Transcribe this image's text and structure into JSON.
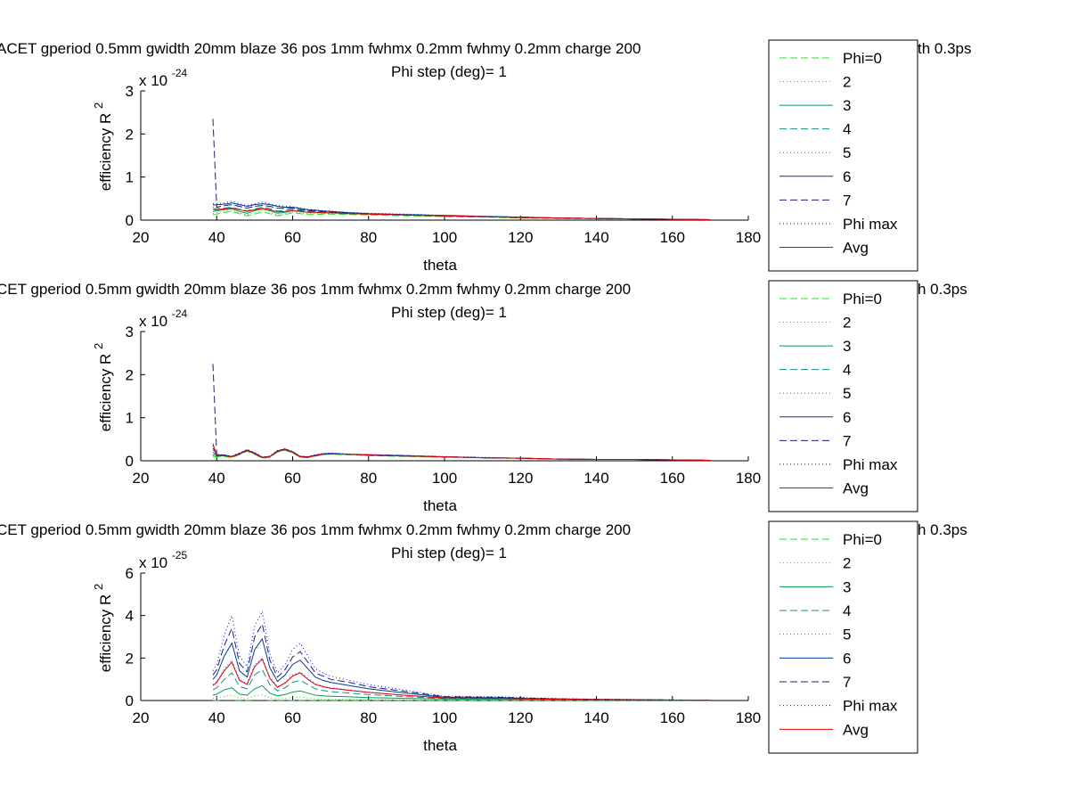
{
  "legend_labels": [
    "Phi=0",
    "2",
    "3",
    "4",
    "5",
    "6",
    "7",
    "Phi max",
    "Avg"
  ],
  "series_styles": [
    {
      "color": "#1ee61e",
      "dash": "8,4"
    },
    {
      "color": "#18d418",
      "dash": "1,3"
    },
    {
      "color": "#00a050",
      "dash": ""
    },
    {
      "color": "#148c8c",
      "dash": "8,4"
    },
    {
      "color": "#1e78c8",
      "dash": "1,3"
    },
    {
      "color": "#003c8c",
      "dash": ""
    },
    {
      "color": "#1e1e78",
      "dash": "8,4"
    },
    {
      "color": "#0000ff",
      "dash": "1,3"
    },
    {
      "color": "#e60000",
      "dash": ""
    }
  ],
  "chart_data": [
    {
      "type": "line",
      "title": "ACET gperiod 0.5mm gwidth 20mm blaze 36 pos 1mm fwhmx 0.2mm fwhmy 0.2mm charge 200",
      "title_tail": "th 0.3ps",
      "subtitle": "Phi step (deg)= 1",
      "xlabel": "theta",
      "ylabel": "efficiency R",
      "ylabel_sup": "2",
      "exponent_prefix": "x 10",
      "exponent_value": "-24",
      "xlim": [
        20,
        180
      ],
      "ylim": [
        0,
        3
      ],
      "xticks": [
        "20",
        "40",
        "60",
        "80",
        "100",
        "120",
        "140",
        "160",
        "180"
      ],
      "yticks": [
        "0",
        "1",
        "2",
        "3"
      ],
      "x": [
        39,
        40,
        42,
        44,
        46,
        48,
        50,
        52,
        54,
        56,
        58,
        60,
        62,
        64,
        66,
        68,
        70,
        75,
        80,
        90,
        100,
        110,
        120,
        130,
        140,
        150,
        160,
        170
      ],
      "series": [
        {
          "values": [
            0.12,
            0.14,
            0.18,
            0.2,
            0.15,
            0.1,
            0.14,
            0.19,
            0.15,
            0.1,
            0.13,
            0.17,
            0.15,
            0.13,
            0.13,
            0.14,
            0.14,
            0.13,
            0.12,
            0.1,
            0.08,
            0.07,
            0.05,
            0.04,
            0.03,
            0.03,
            0.02,
            0.01
          ]
        },
        {
          "values": [
            0.15,
            0.17,
            0.2,
            0.22,
            0.17,
            0.12,
            0.17,
            0.22,
            0.18,
            0.12,
            0.15,
            0.19,
            0.17,
            0.15,
            0.15,
            0.15,
            0.16,
            0.14,
            0.13,
            0.11,
            0.09,
            0.08,
            0.06,
            0.05,
            0.04,
            0.03,
            0.02,
            0.01
          ]
        },
        {
          "values": [
            0.2,
            0.22,
            0.24,
            0.26,
            0.2,
            0.16,
            0.22,
            0.26,
            0.22,
            0.16,
            0.18,
            0.22,
            0.2,
            0.18,
            0.18,
            0.17,
            0.17,
            0.15,
            0.14,
            0.12,
            0.1,
            0.08,
            0.06,
            0.05,
            0.04,
            0.03,
            0.02,
            0.01
          ]
        },
        {
          "values": [
            0.25,
            0.27,
            0.28,
            0.3,
            0.25,
            0.22,
            0.26,
            0.3,
            0.27,
            0.21,
            0.23,
            0.25,
            0.22,
            0.2,
            0.2,
            0.19,
            0.18,
            0.16,
            0.15,
            0.12,
            0.1,
            0.08,
            0.07,
            0.05,
            0.04,
            0.03,
            0.02,
            0.01
          ]
        },
        {
          "values": [
            0.3,
            0.32,
            0.33,
            0.35,
            0.3,
            0.28,
            0.32,
            0.35,
            0.32,
            0.28,
            0.28,
            0.28,
            0.25,
            0.22,
            0.22,
            0.2,
            0.19,
            0.17,
            0.15,
            0.13,
            0.1,
            0.09,
            0.07,
            0.05,
            0.04,
            0.03,
            0.02,
            0.01
          ]
        },
        {
          "values": [
            0.35,
            0.36,
            0.37,
            0.4,
            0.36,
            0.32,
            0.36,
            0.38,
            0.36,
            0.32,
            0.3,
            0.3,
            0.27,
            0.24,
            0.23,
            0.21,
            0.2,
            0.17,
            0.15,
            0.13,
            0.11,
            0.09,
            0.07,
            0.05,
            0.04,
            0.03,
            0.02,
            0.01
          ]
        },
        {
          "values": [
            2.35,
            0.3,
            0.34,
            0.36,
            0.32,
            0.28,
            0.32,
            0.34,
            0.32,
            0.28,
            0.27,
            0.27,
            0.24,
            0.22,
            0.21,
            0.2,
            0.19,
            0.16,
            0.15,
            0.12,
            0.1,
            0.08,
            0.07,
            0.05,
            0.04,
            0.03,
            0.02,
            0.01
          ]
        },
        {
          "values": [
            0.38,
            0.38,
            0.4,
            0.44,
            0.38,
            0.34,
            0.38,
            0.42,
            0.38,
            0.34,
            0.32,
            0.31,
            0.28,
            0.25,
            0.24,
            0.22,
            0.21,
            0.18,
            0.16,
            0.14,
            0.11,
            0.09,
            0.07,
            0.05,
            0.04,
            0.03,
            0.02,
            0.01
          ]
        },
        {
          "values": [
            0.25,
            0.24,
            0.26,
            0.28,
            0.24,
            0.2,
            0.24,
            0.27,
            0.24,
            0.19,
            0.2,
            0.22,
            0.2,
            0.18,
            0.18,
            0.17,
            0.17,
            0.15,
            0.14,
            0.12,
            0.1,
            0.08,
            0.06,
            0.05,
            0.04,
            0.03,
            0.02,
            0.01
          ]
        }
      ]
    },
    {
      "type": "line",
      "title": "CET gperiod 0.5mm gwidth 20mm blaze 36 pos 1mm fwhmx 0.2mm fwhmy 0.2mm charge 200",
      "title_tail": "h 0.3ps",
      "subtitle": "Phi step (deg)= 1",
      "xlabel": "theta",
      "ylabel": "efficiency R",
      "ylabel_sup": "2",
      "exponent_prefix": "x 10",
      "exponent_value": "-24",
      "xlim": [
        20,
        180
      ],
      "ylim": [
        0,
        3
      ],
      "xticks": [
        "20",
        "40",
        "60",
        "80",
        "100",
        "120",
        "140",
        "160",
        "180"
      ],
      "yticks": [
        "0",
        "1",
        "2",
        "3"
      ],
      "x": [
        39,
        40,
        42,
        44,
        46,
        48,
        50,
        52,
        54,
        56,
        58,
        60,
        62,
        64,
        66,
        68,
        70,
        75,
        80,
        90,
        100,
        110,
        120,
        130,
        140,
        150,
        160,
        170
      ],
      "series": [
        {
          "values": [
            0.1,
            0.09,
            0.1,
            0.07,
            0.14,
            0.22,
            0.15,
            0.06,
            0.08,
            0.2,
            0.24,
            0.18,
            0.08,
            0.07,
            0.11,
            0.14,
            0.15,
            0.14,
            0.12,
            0.1,
            0.08,
            0.07,
            0.05,
            0.04,
            0.03,
            0.03,
            0.02,
            0.01
          ]
        },
        {
          "values": [
            0.12,
            0.1,
            0.11,
            0.08,
            0.15,
            0.23,
            0.16,
            0.07,
            0.09,
            0.21,
            0.25,
            0.19,
            0.09,
            0.08,
            0.12,
            0.15,
            0.16,
            0.14,
            0.13,
            0.11,
            0.09,
            0.07,
            0.06,
            0.04,
            0.03,
            0.03,
            0.02,
            0.01
          ]
        },
        {
          "values": [
            0.14,
            0.11,
            0.12,
            0.09,
            0.15,
            0.24,
            0.16,
            0.07,
            0.09,
            0.21,
            0.26,
            0.19,
            0.09,
            0.08,
            0.12,
            0.15,
            0.16,
            0.15,
            0.13,
            0.11,
            0.09,
            0.07,
            0.06,
            0.04,
            0.03,
            0.03,
            0.02,
            0.01
          ]
        },
        {
          "values": [
            0.2,
            0.12,
            0.12,
            0.09,
            0.16,
            0.24,
            0.17,
            0.07,
            0.1,
            0.22,
            0.26,
            0.2,
            0.09,
            0.08,
            0.12,
            0.15,
            0.16,
            0.15,
            0.13,
            0.11,
            0.09,
            0.07,
            0.06,
            0.04,
            0.03,
            0.03,
            0.02,
            0.01
          ]
        },
        {
          "values": [
            0.25,
            0.13,
            0.13,
            0.1,
            0.16,
            0.25,
            0.17,
            0.08,
            0.1,
            0.22,
            0.27,
            0.2,
            0.1,
            0.09,
            0.13,
            0.16,
            0.17,
            0.15,
            0.13,
            0.11,
            0.09,
            0.07,
            0.06,
            0.04,
            0.03,
            0.03,
            0.02,
            0.01
          ]
        },
        {
          "values": [
            0.3,
            0.14,
            0.13,
            0.1,
            0.17,
            0.25,
            0.18,
            0.08,
            0.1,
            0.23,
            0.27,
            0.21,
            0.1,
            0.09,
            0.13,
            0.16,
            0.17,
            0.15,
            0.14,
            0.12,
            0.09,
            0.07,
            0.06,
            0.04,
            0.03,
            0.03,
            0.02,
            0.01
          ]
        },
        {
          "values": [
            2.25,
            0.14,
            0.13,
            0.1,
            0.17,
            0.25,
            0.18,
            0.08,
            0.1,
            0.23,
            0.27,
            0.21,
            0.1,
            0.09,
            0.13,
            0.16,
            0.17,
            0.15,
            0.14,
            0.12,
            0.09,
            0.07,
            0.06,
            0.04,
            0.03,
            0.03,
            0.02,
            0.01
          ]
        },
        {
          "values": [
            0.35,
            0.15,
            0.14,
            0.11,
            0.18,
            0.26,
            0.19,
            0.09,
            0.11,
            0.24,
            0.28,
            0.22,
            0.11,
            0.1,
            0.14,
            0.17,
            0.18,
            0.16,
            0.14,
            0.12,
            0.1,
            0.08,
            0.06,
            0.04,
            0.03,
            0.03,
            0.02,
            0.01
          ]
        },
        {
          "values": [
            0.4,
            0.12,
            0.12,
            0.09,
            0.16,
            0.24,
            0.17,
            0.07,
            0.1,
            0.22,
            0.26,
            0.2,
            0.09,
            0.08,
            0.12,
            0.15,
            0.16,
            0.15,
            0.13,
            0.11,
            0.09,
            0.07,
            0.06,
            0.04,
            0.03,
            0.03,
            0.02,
            0.01
          ]
        }
      ]
    },
    {
      "type": "line",
      "title": "CET gperiod 0.5mm gwidth 20mm blaze 36 pos 1mm fwhmx 0.2mm fwhmy 0.2mm charge 200",
      "title_tail": "h 0.3ps",
      "subtitle": "Phi step (deg)= 1",
      "xlabel": "theta",
      "ylabel": "efficiency R",
      "ylabel_sup": "2",
      "exponent_prefix": "x 10",
      "exponent_value": "-25",
      "xlim": [
        20,
        180
      ],
      "ylim": [
        0,
        6
      ],
      "xticks": [
        "20",
        "40",
        "60",
        "80",
        "100",
        "120",
        "140",
        "160",
        "180"
      ],
      "yticks": [
        "0",
        "2",
        "4",
        "6"
      ],
      "x": [
        39,
        40,
        42,
        44,
        46,
        48,
        50,
        52,
        54,
        56,
        58,
        60,
        62,
        64,
        66,
        68,
        70,
        75,
        80,
        90,
        100,
        110,
        115,
        120,
        130,
        140,
        150,
        160,
        170
      ],
      "series": [
        {
          "values": [
            0.01,
            0.01,
            0.02,
            0.02,
            0.01,
            0.01,
            0.02,
            0.02,
            0.01,
            0.01,
            0.01,
            0.01,
            0.01,
            0.01,
            0.01,
            0.01,
            0.01,
            0.01,
            0.01,
            0.01,
            0.01,
            0.01,
            0.01,
            0.01,
            0.01,
            0.01,
            0.01,
            0.01,
            0.01
          ]
        },
        {
          "values": [
            0.1,
            0.12,
            0.2,
            0.25,
            0.1,
            0.08,
            0.22,
            0.27,
            0.12,
            0.08,
            0.1,
            0.14,
            0.16,
            0.12,
            0.08,
            0.07,
            0.06,
            0.05,
            0.04,
            0.03,
            0.03,
            0.03,
            0.03,
            0.02,
            0.02,
            0.01,
            0.01,
            0.01,
            0.01
          ]
        },
        {
          "values": [
            0.25,
            0.3,
            0.5,
            0.6,
            0.3,
            0.25,
            0.55,
            0.7,
            0.35,
            0.22,
            0.28,
            0.4,
            0.45,
            0.35,
            0.25,
            0.22,
            0.2,
            0.17,
            0.14,
            0.1,
            0.07,
            0.06,
            0.06,
            0.05,
            0.04,
            0.03,
            0.02,
            0.02,
            0.01
          ]
        },
        {
          "values": [
            0.5,
            0.6,
            1.0,
            1.3,
            0.65,
            0.55,
            1.2,
            1.45,
            0.75,
            0.45,
            0.6,
            0.85,
            0.95,
            0.75,
            0.55,
            0.47,
            0.42,
            0.35,
            0.28,
            0.18,
            0.1,
            0.09,
            0.08,
            0.07,
            0.05,
            0.04,
            0.03,
            0.02,
            0.01
          ]
        },
        {
          "values": [
            0.75,
            0.9,
            1.5,
            1.9,
            1.0,
            0.8,
            1.7,
            2.0,
            1.1,
            0.65,
            0.85,
            1.2,
            1.35,
            1.05,
            0.8,
            0.68,
            0.6,
            0.5,
            0.4,
            0.25,
            0.12,
            0.11,
            0.1,
            0.08,
            0.06,
            0.04,
            0.03,
            0.02,
            0.01
          ]
        },
        {
          "values": [
            1.0,
            1.2,
            2.1,
            2.7,
            1.4,
            1.1,
            2.4,
            2.9,
            1.55,
            0.9,
            1.2,
            1.7,
            1.9,
            1.5,
            1.1,
            0.95,
            0.85,
            0.7,
            0.55,
            0.35,
            0.15,
            0.14,
            0.13,
            0.1,
            0.07,
            0.05,
            0.04,
            0.02,
            0.01
          ]
        },
        {
          "values": [
            1.2,
            1.45,
            2.6,
            3.4,
            1.75,
            1.35,
            3.0,
            3.6,
            1.9,
            1.1,
            1.45,
            2.05,
            2.3,
            1.8,
            1.3,
            1.15,
            1.0,
            0.85,
            0.65,
            0.42,
            0.18,
            0.16,
            0.15,
            0.12,
            0.08,
            0.06,
            0.04,
            0.03,
            0.01
          ]
        },
        {
          "values": [
            1.4,
            1.7,
            3.1,
            4.0,
            2.1,
            1.6,
            3.5,
            4.2,
            2.2,
            1.3,
            1.7,
            2.4,
            2.7,
            2.1,
            1.5,
            1.3,
            1.15,
            0.95,
            0.75,
            0.48,
            0.2,
            0.18,
            0.18,
            0.14,
            0.09,
            0.06,
            0.05,
            0.03,
            0.01
          ]
        },
        {
          "values": [
            0.7,
            0.85,
            1.4,
            1.8,
            0.95,
            0.75,
            1.6,
            1.95,
            1.05,
            0.62,
            0.82,
            1.15,
            1.3,
            1.0,
            0.75,
            0.65,
            0.58,
            0.48,
            0.38,
            0.24,
            0.12,
            0.11,
            0.1,
            0.08,
            0.06,
            0.04,
            0.03,
            0.02,
            0.01
          ]
        }
      ]
    }
  ]
}
